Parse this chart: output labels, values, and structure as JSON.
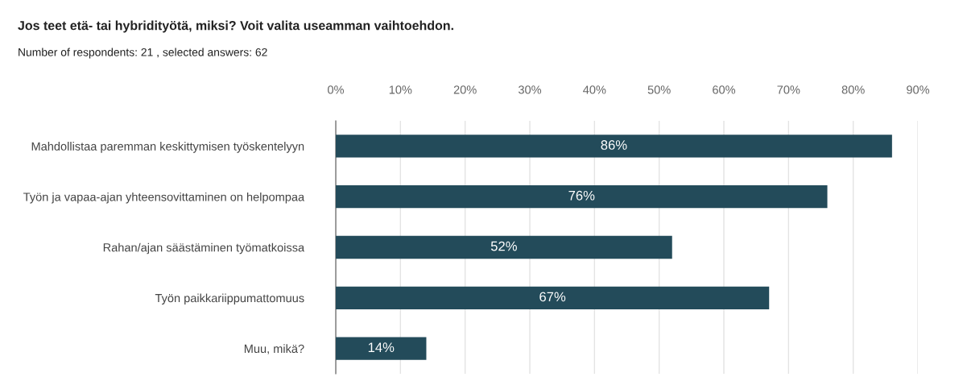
{
  "chart_data": {
    "type": "bar",
    "orientation": "horizontal",
    "title": "Jos teet etä- tai hybridityötä, miksi? Voit valita useamman vaihtoehdon.",
    "subtitle": "Number of respondents: 21 , selected answers: 62",
    "categories": [
      "Mahdollistaa paremman keskittymisen työskentelyyn",
      "Työn ja vapaa-ajan yhteensovittaminen on helpompaa",
      "Rahan/ajan säästäminen työmatkoissa",
      "Työn paikkariippumattomuus",
      "Muu, mikä?"
    ],
    "values": [
      86,
      76,
      52,
      67,
      14
    ],
    "color": "#234b5a",
    "value_labels": [
      "86%",
      "76%",
      "52%",
      "67%",
      "14%"
    ],
    "xlim": [
      0,
      90
    ],
    "xticks": [
      {
        "value": 0,
        "label": "0%"
      },
      {
        "value": 10,
        "label": "10%"
      },
      {
        "value": 20,
        "label": "20%"
      },
      {
        "value": 30,
        "label": "30%"
      },
      {
        "value": 40,
        "label": "40%"
      },
      {
        "value": 50,
        "label": "50%"
      },
      {
        "value": 60,
        "label": "60%"
      },
      {
        "value": 70,
        "label": "70%"
      },
      {
        "value": 80,
        "label": "80%"
      },
      {
        "value": 90,
        "label": "90%"
      }
    ],
    "grid": "x",
    "legend": false
  }
}
